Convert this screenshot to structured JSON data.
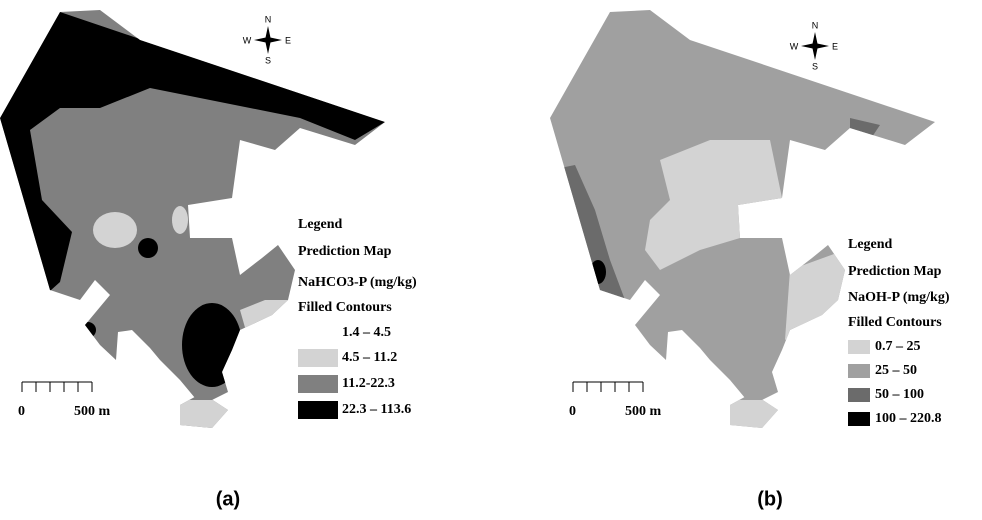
{
  "panels": [
    {
      "caption": "(a)",
      "compass": {
        "n": "N",
        "e": "E",
        "s": "S",
        "w": "W"
      },
      "legend": {
        "title": "Legend",
        "subtitle": "Prediction Map",
        "variable": "NaHCO3-P (mg/kg)",
        "method": "Filled Contours",
        "classes": [
          {
            "label": "1.4 – 4.5",
            "color": "#ffffff"
          },
          {
            "label": "4.5 – 11.2",
            "color": "#d3d3d3"
          },
          {
            "label": "11.2-22.3",
            "color": "#808080"
          },
          {
            "label": "22.3 – 113.6",
            "color": "#000000"
          }
        ]
      },
      "scale": {
        "start": "0",
        "end": "500 m"
      }
    },
    {
      "caption": "(b)",
      "compass": {
        "n": "N",
        "e": "E",
        "s": "S",
        "w": "W"
      },
      "legend": {
        "title": "Legend",
        "subtitle": "Prediction Map",
        "variable": "NaOH-P (mg/kg)",
        "method": "Filled Contours",
        "classes": [
          {
            "label": "0.7 – 25",
            "color": "#d3d3d3"
          },
          {
            "label": "25 – 50",
            "color": "#a0a0a0"
          },
          {
            "label": "50 – 100",
            "color": "#6b6b6b"
          },
          {
            "label": "100 – 220.8",
            "color": "#000000"
          }
        ]
      },
      "scale": {
        "start": "0",
        "end": "500 m"
      }
    }
  ]
}
